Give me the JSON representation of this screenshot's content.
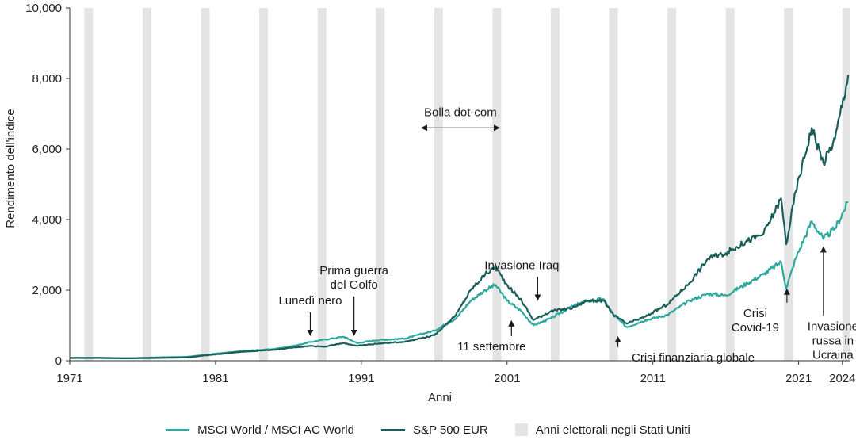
{
  "chart_data": {
    "type": "line",
    "title": "",
    "xlabel": "Anni",
    "ylabel": "Rendimento dell'indice",
    "xlim": [
      1971,
      2024.5
    ],
    "ylim": [
      0,
      10000
    ],
    "x_ticks": [
      1971,
      1981,
      1991,
      2001,
      2011,
      2021,
      2024
    ],
    "y_ticks": [
      0,
      2000,
      4000,
      6000,
      8000,
      10000
    ],
    "y_tick_labels": [
      "0",
      "2,000",
      "4,000",
      "6,000",
      "8,000",
      "10,000"
    ],
    "grid": false,
    "legend_position": "bottom",
    "series": [
      {
        "name": "MSCI World / MSCI AC World",
        "color": "#2ea89c",
        "x": [
          1971,
          1973,
          1975,
          1977,
          1979,
          1981,
          1983,
          1985,
          1986.5,
          1987.5,
          1988.5,
          1989.8,
          1990.7,
          1992,
          1994,
          1996,
          1997.5,
          1998.5,
          1999.5,
          2000.2,
          2001,
          2002,
          2002.8,
          2004,
          2005.5,
          2006.5,
          2007.6,
          2008.3,
          2009.2,
          2010.5,
          2012,
          2013.5,
          2014.8,
          2016,
          2017.5,
          2018.6,
          2019.8,
          2020.15,
          2020.8,
          2021.9,
          2022.7,
          2023.5,
          2024.4
        ],
        "y": [
          80,
          85,
          70,
          95,
          110,
          200,
          280,
          330,
          430,
          530,
          600,
          680,
          500,
          580,
          630,
          850,
          1200,
          1700,
          2000,
          2150,
          1700,
          1400,
          1000,
          1200,
          1550,
          1700,
          1750,
          1300,
          950,
          1150,
          1300,
          1700,
          1900,
          1850,
          2200,
          2450,
          2800,
          2050,
          2900,
          3950,
          3450,
          3750,
          4500
        ]
      },
      {
        "name": "S&P 500 EUR",
        "color": "#1a5e5a",
        "x": [
          1971,
          1973,
          1975,
          1977,
          1979,
          1981,
          1983,
          1985,
          1986.5,
          1987.5,
          1988.5,
          1989.8,
          1990.7,
          1992,
          1994,
          1996,
          1997.5,
          1998.5,
          1999.5,
          2000.2,
          2001,
          2002,
          2002.8,
          2004,
          2005.5,
          2006.5,
          2007.6,
          2008.3,
          2009.2,
          2010.5,
          2012,
          2013.5,
          2014.8,
          2016,
          2017.5,
          2018.6,
          2019.8,
          2020.15,
          2020.8,
          2021.9,
          2022.7,
          2023.5,
          2024.4
        ],
        "y": [
          80,
          80,
          70,
          80,
          95,
          180,
          260,
          310,
          380,
          420,
          400,
          500,
          420,
          480,
          540,
          720,
          1300,
          2000,
          2450,
          2650,
          2150,
          1700,
          1150,
          1400,
          1500,
          1700,
          1700,
          1300,
          1050,
          1250,
          1600,
          2200,
          2900,
          3050,
          3400,
          3600,
          4600,
          3300,
          4800,
          6600,
          5600,
          6300,
          8100
        ]
      }
    ],
    "shaded_bands": {
      "name": "Anni elettorali negli Stati Uniti",
      "color": "#e4e4e4",
      "years": [
        1972,
        1976,
        1980,
        1984,
        1988,
        1992,
        1996,
        2000,
        2004,
        2008,
        2012,
        2016,
        2020,
        2024
      ]
    },
    "annotations": [
      {
        "lines": [
          "Lunedì nero"
        ],
        "year": 1987.5,
        "value": 700,
        "arrow": "down"
      },
      {
        "lines": [
          "Prima guerra",
          "del Golfo"
        ],
        "year": 1990.5,
        "value": 700,
        "arrow": "down"
      },
      {
        "lines": [
          "Bolla dot-com"
        ],
        "year_range": [
          1995.3,
          2000.3
        ],
        "value": 6600,
        "arrow": "double"
      },
      {
        "lines": [
          "Invasione Iraq"
        ],
        "year": 2003.1,
        "value": 1700,
        "arrow": "down"
      },
      {
        "lines": [
          "11 settembre"
        ],
        "year": 2001.3,
        "value": 1150,
        "arrow": "up"
      },
      {
        "lines": [
          "Crisi finanziaria globale"
        ],
        "year": 2008.6,
        "value": 700,
        "arrow": "up"
      },
      {
        "lines": [
          "Crisi",
          "Covid-19"
        ],
        "year": 2020.2,
        "value": 2050,
        "arrow": "up"
      },
      {
        "lines": [
          "Invasione",
          "russa in",
          "Ucraina"
        ],
        "year": 2022.7,
        "value": 3250,
        "arrow": "up"
      }
    ]
  },
  "legend": {
    "series1": "MSCI World / MSCI AC World",
    "series2": "S&P 500 EUR",
    "bands": "Anni elettorali negli Stati Uniti"
  }
}
